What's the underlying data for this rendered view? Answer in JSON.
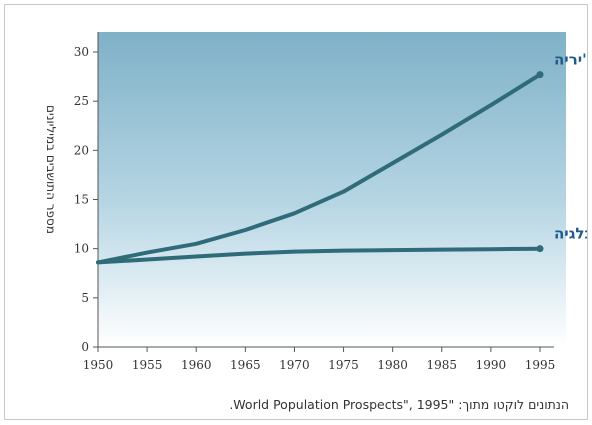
{
  "chart_data": {
    "type": "line",
    "title": "",
    "xlabel": "",
    "ylabel": "מספר התושבים במיליונים",
    "xlim": [
      1950,
      1995
    ],
    "ylim": [
      0,
      30
    ],
    "xticks": [
      1950,
      1955,
      1960,
      1965,
      1970,
      1975,
      1980,
      1985,
      1990,
      1995
    ],
    "yticks": [
      0,
      5,
      10,
      15,
      20,
      25,
      30
    ],
    "grid": false,
    "series": [
      {
        "name": "אלג'יריה",
        "color": "#2f6b78",
        "x": [
          1950,
          1955,
          1960,
          1965,
          1970,
          1975,
          1980,
          1985,
          1990,
          1995
        ],
        "y": [
          8.6,
          9.6,
          10.5,
          11.9,
          13.6,
          15.8,
          18.7,
          21.6,
          24.6,
          27.7
        ]
      },
      {
        "name": "בלגיה",
        "color": "#2f6b78",
        "x": [
          1950,
          1955,
          1960,
          1965,
          1970,
          1975,
          1980,
          1985,
          1990,
          1995
        ],
        "y": [
          8.6,
          8.9,
          9.2,
          9.5,
          9.7,
          9.8,
          9.85,
          9.9,
          9.95,
          10.0
        ]
      }
    ],
    "note": "הנתונים לוקטו מתוך: \"World Population Prospects\", 1995."
  },
  "colors": {
    "plot_top": "#7fb1c8",
    "plot_bottom": "#ffffff",
    "line": "#2f6b78",
    "label": "#1f5a8a"
  }
}
